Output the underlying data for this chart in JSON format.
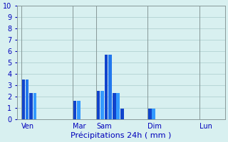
{
  "title": "Précipitations 24h ( mm )",
  "background_color": "#d8f0f0",
  "ylim": [
    0,
    10
  ],
  "yticks": [
    0,
    1,
    2,
    3,
    4,
    5,
    6,
    7,
    8,
    9,
    10
  ],
  "grid_color": "#aacccc",
  "day_labels": [
    "Ven",
    "Mar",
    "Sam",
    "Dim",
    "Lun"
  ],
  "bars": [
    {
      "x": 1,
      "height": 3.5,
      "color": "#1144cc"
    },
    {
      "x": 2,
      "height": 3.5,
      "color": "#2277ee"
    },
    {
      "x": 3,
      "height": 2.3,
      "color": "#1144cc"
    },
    {
      "x": 4,
      "height": 2.3,
      "color": "#3399ff"
    },
    {
      "x": 14,
      "height": 1.6,
      "color": "#1144cc"
    },
    {
      "x": 15,
      "height": 1.6,
      "color": "#3399ff"
    },
    {
      "x": 20,
      "height": 2.5,
      "color": "#1144cc"
    },
    {
      "x": 21,
      "height": 2.5,
      "color": "#3399ff"
    },
    {
      "x": 22,
      "height": 5.7,
      "color": "#1144cc"
    },
    {
      "x": 23,
      "height": 5.7,
      "color": "#2277ee"
    },
    {
      "x": 24,
      "height": 2.3,
      "color": "#1144cc"
    },
    {
      "x": 25,
      "height": 2.3,
      "color": "#3399ff"
    },
    {
      "x": 26,
      "height": 0.9,
      "color": "#1144cc"
    },
    {
      "x": 33,
      "height": 0.9,
      "color": "#1144cc"
    },
    {
      "x": 34,
      "height": 0.9,
      "color": "#3399ff"
    },
    {
      "x": 46,
      "height": 0.0,
      "color": "#1144cc"
    }
  ],
  "bar_width": 0.85,
  "xlabel_color": "#0000bb",
  "title_color": "#0000bb",
  "tick_color": "#0000bb",
  "tick_fontsize": 7,
  "title_fontsize": 8,
  "separator_positions": [
    0.5,
    13.5,
    19.5,
    32.5,
    45.5
  ],
  "day_tick_positions": [
    0.5,
    13.5,
    19.5,
    32.5,
    45.5
  ],
  "xlim": [
    -0.5,
    52
  ]
}
